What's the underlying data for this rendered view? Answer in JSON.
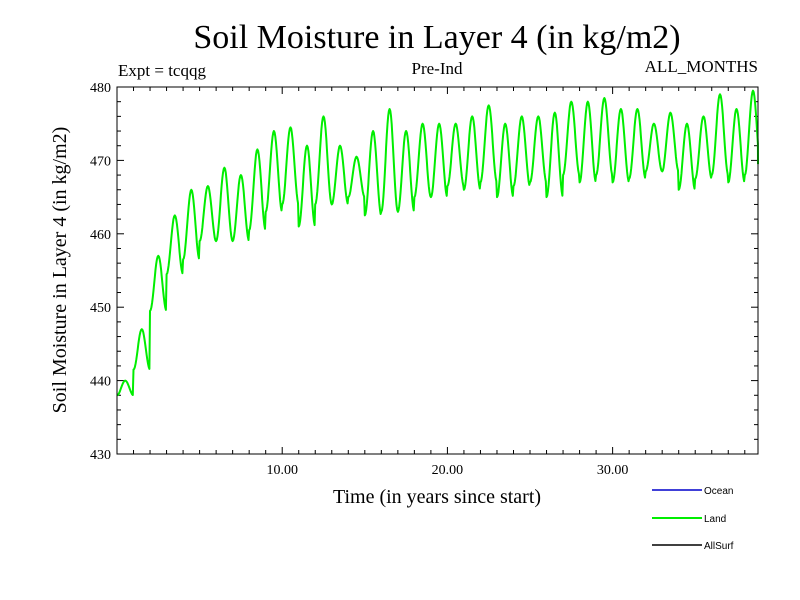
{
  "chart_data": {
    "type": "line",
    "title": "Soil Moisture in Layer 4 (in kg/m2)",
    "subtitle_left": "Expt = tcqqg",
    "subtitle_center": "Pre-Ind",
    "subtitle_right": "ALL_MONTHS",
    "xlabel": "Time (in years since start)",
    "ylabel": "Soil Moisture in Layer 4 (in kg/m2)",
    "xlim": [
      0,
      38.8
    ],
    "ylim": [
      430,
      480
    ],
    "xticks": [
      10,
      20,
      30
    ],
    "xtick_labels": [
      "10.00",
      "20.00",
      "30.00"
    ],
    "yticks": [
      430,
      440,
      450,
      460,
      470,
      480
    ],
    "ytick_labels": [
      "430",
      "440",
      "450",
      "460",
      "470",
      "480"
    ],
    "x_minor_step": 1,
    "y_minor_step": 2,
    "grid": false,
    "legend_position": "bottom-right",
    "series": [
      {
        "name": "Ocean",
        "color": "#0000cc",
        "values": []
      },
      {
        "name": "Land",
        "color": "#00ee00",
        "sampling": "annual extremes (min, max) per model year, seasonal cycle",
        "annual_min": [
          438,
          441.5,
          449.5,
          454.5,
          456.5,
          459,
          459,
          459,
          460.5,
          463,
          464,
          461,
          464,
          464,
          465,
          462.5,
          463,
          463,
          465,
          465,
          466.5,
          466,
          467,
          465,
          466.5,
          467,
          465,
          468,
          467,
          468,
          467,
          467.5,
          468.5,
          468.5,
          466,
          467.5,
          468,
          467,
          468
        ],
        "annual_max": [
          440,
          447,
          457,
          462.5,
          466,
          466.5,
          469,
          468,
          471.5,
          474,
          474.5,
          472,
          476,
          472,
          470.5,
          474,
          477,
          474,
          475,
          475,
          475,
          476,
          477.5,
          475,
          476,
          476,
          476.5,
          478,
          478,
          478.5,
          477,
          477,
          475,
          476.5,
          475,
          476,
          479,
          477,
          479.5
        ],
        "end_value": 469.5
      },
      {
        "name": "AllSurf",
        "color": "#000000",
        "values": []
      }
    ]
  }
}
